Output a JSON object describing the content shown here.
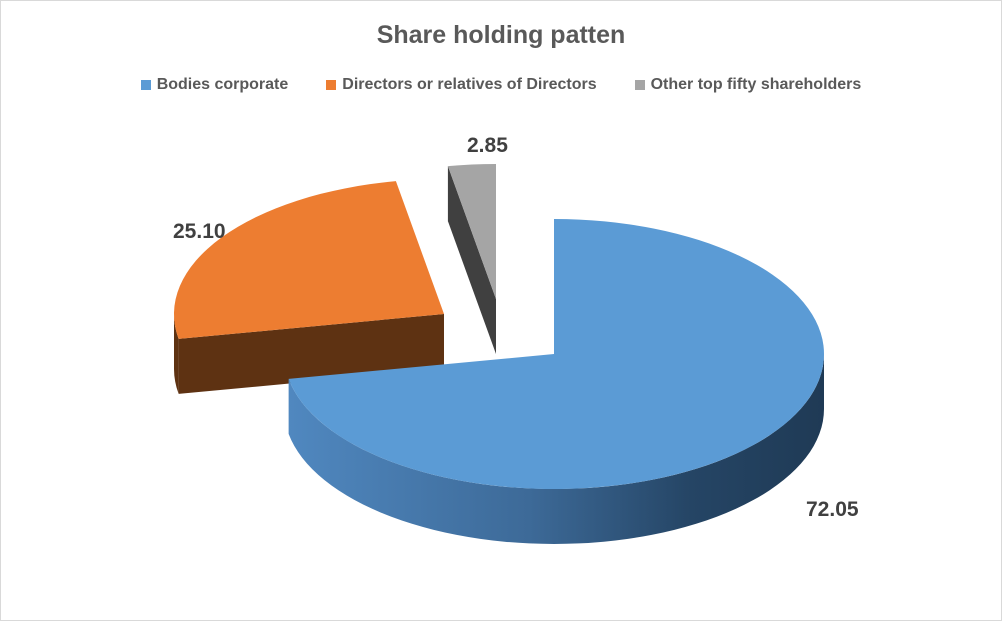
{
  "chart_data": {
    "type": "pie",
    "variant": "3d-exploded",
    "title": "Share holding patten",
    "legend_position": "top",
    "categories": [
      "Bodies corporate",
      "Directors or relatives of Directors",
      "Other top fifty shareholders"
    ],
    "values": [
      72.05,
      25.1,
      2.85
    ],
    "data_labels": [
      "72.05",
      "25.10",
      "2.85"
    ],
    "colors": [
      "#5B9BD5",
      "#ED7D31",
      "#A5A5A5"
    ]
  }
}
